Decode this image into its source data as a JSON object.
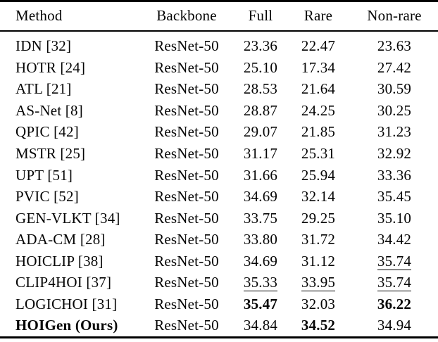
{
  "table": {
    "columns": [
      "Method",
      "Backbone",
      "Full",
      "Rare",
      "Non-rare"
    ],
    "rows": [
      {
        "cells": [
          {
            "text": "IDN [32]"
          },
          {
            "text": "ResNet-50"
          },
          {
            "text": "23.36"
          },
          {
            "text": "22.47"
          },
          {
            "text": "23.63"
          }
        ]
      },
      {
        "cells": [
          {
            "text": "HOTR [24]"
          },
          {
            "text": "ResNet-50"
          },
          {
            "text": "25.10"
          },
          {
            "text": "17.34"
          },
          {
            "text": "27.42"
          }
        ]
      },
      {
        "cells": [
          {
            "text": "ATL [21]"
          },
          {
            "text": "ResNet-50"
          },
          {
            "text": "28.53"
          },
          {
            "text": "21.64"
          },
          {
            "text": "30.59"
          }
        ]
      },
      {
        "cells": [
          {
            "text": "AS-Net [8]"
          },
          {
            "text": "ResNet-50"
          },
          {
            "text": "28.87"
          },
          {
            "text": "24.25"
          },
          {
            "text": "30.25"
          }
        ]
      },
      {
        "cells": [
          {
            "text": "QPIC [42]"
          },
          {
            "text": "ResNet-50"
          },
          {
            "text": "29.07"
          },
          {
            "text": "21.85"
          },
          {
            "text": "31.23"
          }
        ]
      },
      {
        "cells": [
          {
            "text": "MSTR [25]"
          },
          {
            "text": "ResNet-50"
          },
          {
            "text": "31.17"
          },
          {
            "text": "25.31"
          },
          {
            "text": "32.92"
          }
        ]
      },
      {
        "cells": [
          {
            "text": "UPT [51]"
          },
          {
            "text": "ResNet-50"
          },
          {
            "text": "31.66"
          },
          {
            "text": "25.94"
          },
          {
            "text": "33.36"
          }
        ]
      },
      {
        "cells": [
          {
            "text": "PVIC [52]"
          },
          {
            "text": "ResNet-50"
          },
          {
            "text": "34.69"
          },
          {
            "text": "32.14"
          },
          {
            "text": "35.45"
          }
        ]
      },
      {
        "cells": [
          {
            "text": "GEN-VLKT [34]"
          },
          {
            "text": "ResNet-50"
          },
          {
            "text": "33.75"
          },
          {
            "text": "29.25"
          },
          {
            "text": "35.10"
          }
        ]
      },
      {
        "cells": [
          {
            "text": "ADA-CM [28]"
          },
          {
            "text": "ResNet-50"
          },
          {
            "text": "33.80"
          },
          {
            "text": "31.72"
          },
          {
            "text": "34.42"
          }
        ]
      },
      {
        "cells": [
          {
            "text": "HOICLIP [38]"
          },
          {
            "text": "ResNet-50"
          },
          {
            "text": "34.69"
          },
          {
            "text": "31.12"
          },
          {
            "text": "35.74",
            "underline": true
          }
        ]
      },
      {
        "cells": [
          {
            "text": "CLIP4HOI [37]"
          },
          {
            "text": "ResNet-50"
          },
          {
            "text": "35.33",
            "underline": true
          },
          {
            "text": "33.95",
            "underline": true
          },
          {
            "text": "35.74",
            "underline": true
          }
        ]
      },
      {
        "cells": [
          {
            "text": "LOGICHOI [31]"
          },
          {
            "text": "ResNet-50"
          },
          {
            "text": "35.47",
            "bold": true
          },
          {
            "text": "32.03"
          },
          {
            "text": "36.22",
            "bold": true
          }
        ]
      },
      {
        "cells": [
          {
            "text": "HOIGen (Ours)",
            "bold": true
          },
          {
            "text": "ResNet-50"
          },
          {
            "text": "34.84"
          },
          {
            "text": "34.52",
            "bold": true
          },
          {
            "text": "34.94"
          }
        ]
      }
    ]
  },
  "colors": {
    "text": "#050505",
    "rule": "#000000",
    "background": "#ffffff"
  }
}
